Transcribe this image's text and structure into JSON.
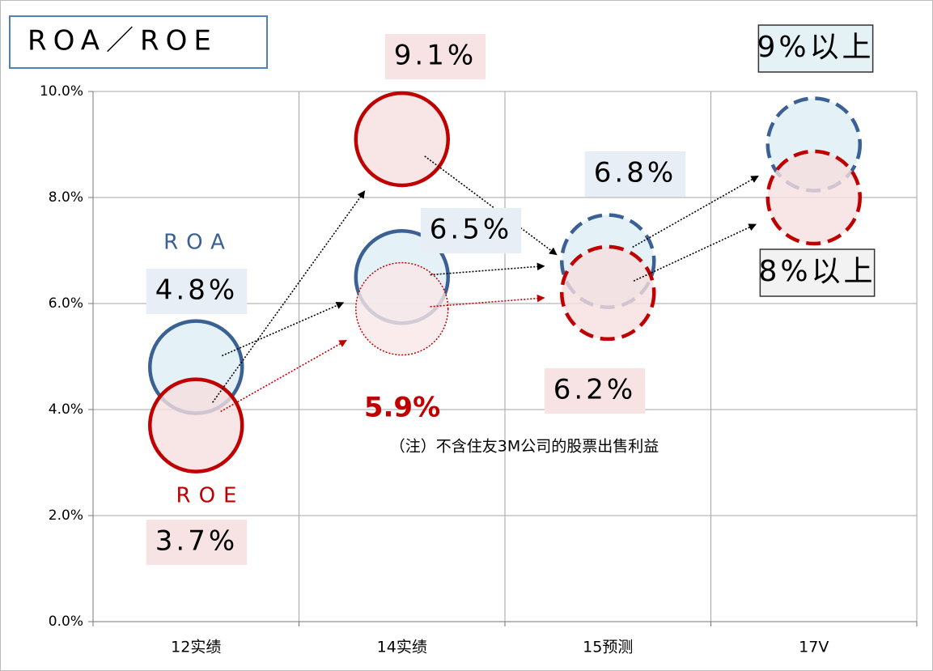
{
  "chart_data": {
    "type": "bubble",
    "title": "ROA／ROE",
    "categories": [
      "12实绩",
      "14实绩",
      "15预测",
      "17V"
    ],
    "projected": [
      false,
      false,
      true,
      true
    ],
    "ylim": [
      0,
      10
    ],
    "yticks": [
      {
        "value": 0,
        "label": "0.0%"
      },
      {
        "value": 2,
        "label": "2.0%"
      },
      {
        "value": 4,
        "label": "4.0%"
      },
      {
        "value": 6,
        "label": "6.0%"
      },
      {
        "value": 8,
        "label": "8.0%"
      },
      {
        "value": 10,
        "label": "10.0%"
      }
    ],
    "grid": true,
    "series": [
      {
        "name": "ROA",
        "color": "#3b6194",
        "fill": "#ddeef5",
        "values": [
          4.8,
          6.5,
          6.8,
          9
        ],
        "value_labels": [
          "4.8%",
          "6.5%",
          "6.8%",
          "9%以上"
        ]
      },
      {
        "name": "ROE",
        "color": "#c00000",
        "fill": "#f6dfdf",
        "values": [
          3.7,
          9.1,
          6.2,
          8
        ],
        "value_labels": [
          "3.7%",
          "9.1%",
          "6.2%",
          "8%以上"
        ]
      },
      {
        "name": "（注）不含住友3M公司的股票出售利益",
        "color": "#c00000",
        "fill": "#f9e7e7",
        "style": "dotted",
        "values": [
          null,
          5.9,
          null,
          null
        ],
        "value_labels": [
          null,
          "5.9%",
          null,
          null
        ]
      }
    ]
  }
}
